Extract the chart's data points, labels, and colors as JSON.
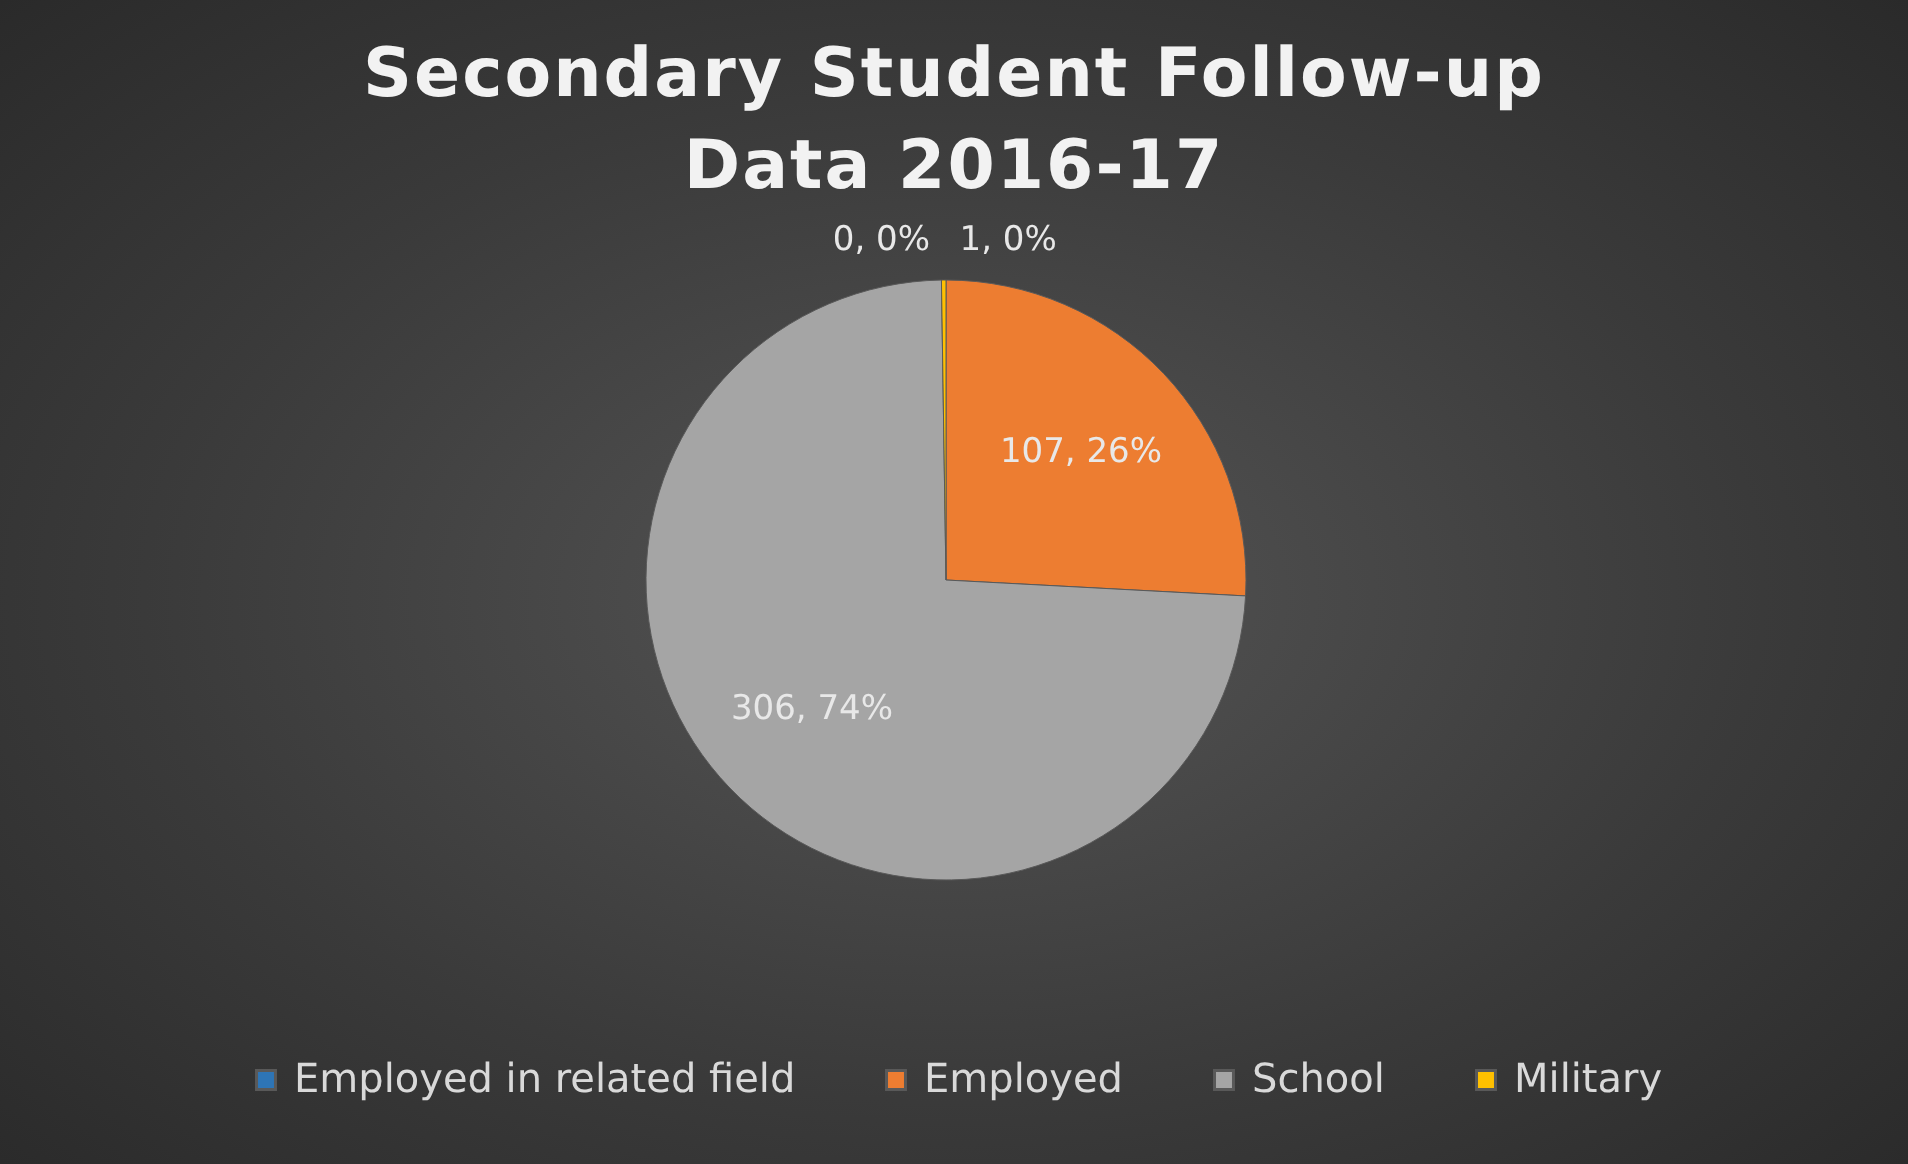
{
  "chart_data": {
    "type": "pie",
    "title": "Secondary Student Follow-up Data 2016-17",
    "categories": [
      "Employed in related field",
      "Employed",
      "School",
      "Military"
    ],
    "values": [
      0,
      107,
      306,
      1
    ],
    "colors": [
      "#2e75b6",
      "#ed7d31",
      "#a5a5a5",
      "#ffc000"
    ],
    "value_labels": [
      "0, 0%",
      "107, 26%",
      "306, 74%",
      "1, 0%"
    ],
    "legend": "bottom"
  }
}
